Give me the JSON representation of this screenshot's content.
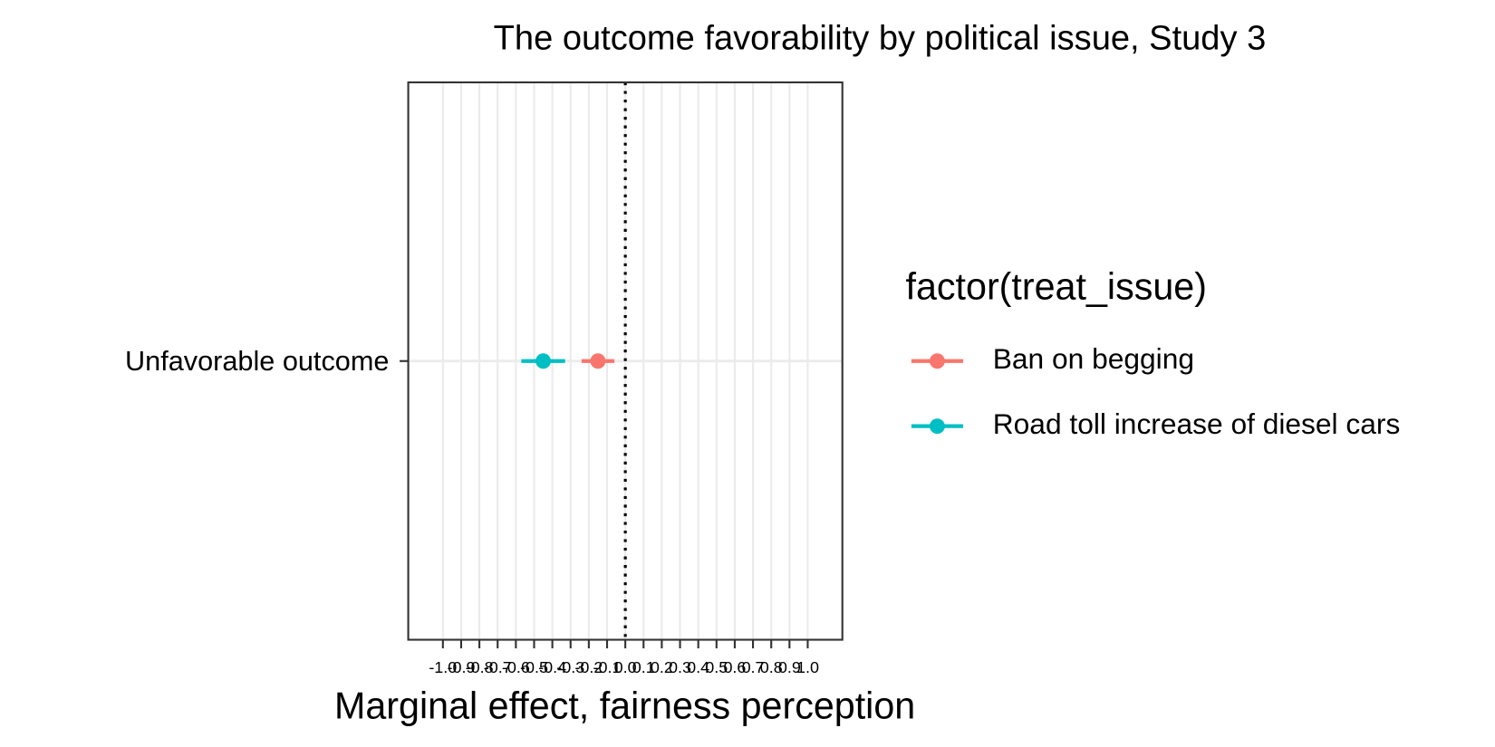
{
  "chart_data": {
    "type": "dot-errorbar",
    "title": "The outcome favorability by political issue, Study 3",
    "x_label": "Marginal effect, fairness perception",
    "legend_title": "factor(treat_issue)",
    "categories": [
      "Unfavorable outcome"
    ],
    "series": [
      {
        "name": "Ban on begging",
        "color": "#f8766d",
        "values": [
          -0.15
        ],
        "lower": [
          -0.24
        ],
        "upper": [
          -0.06
        ]
      },
      {
        "name": "Road toll increase of diesel cars",
        "color": "#00bfc4",
        "values": [
          -0.45
        ],
        "lower": [
          -0.57
        ],
        "upper": [
          -0.33
        ]
      }
    ],
    "xlim": [
      -1.19,
      1.19
    ],
    "xticks": [
      {
        "value": -1,
        "label": "-1.0"
      },
      -0.9,
      -0.8,
      -0.7,
      -0.6,
      -0.5,
      -0.4,
      -0.3,
      -0.2,
      -0.1,
      {
        "value": 0,
        "label": "0.0"
      },
      0.1,
      0.2,
      0.3,
      0.4,
      0.5,
      0.6,
      0.7,
      0.8,
      0.9,
      {
        "value": 1,
        "label": "1.0"
      }
    ],
    "vline": 0,
    "grid": true,
    "legend_position": "right"
  }
}
